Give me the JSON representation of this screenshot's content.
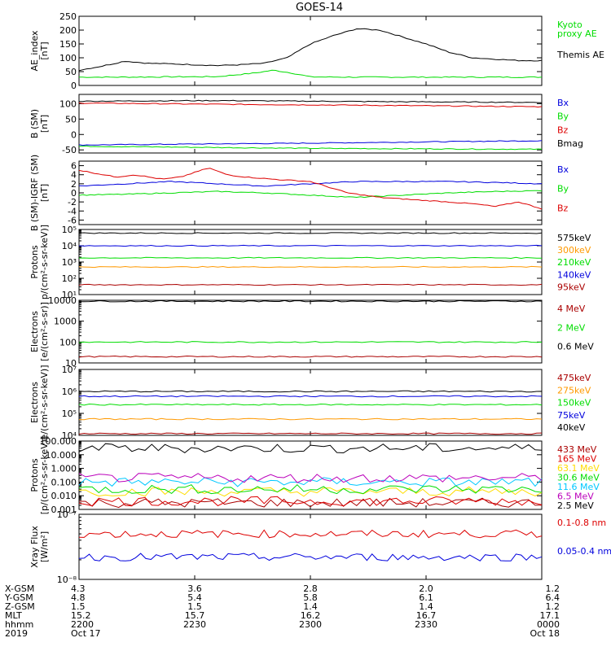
{
  "title": "GOES-14",
  "colors": {
    "black": "#000000",
    "red": "#dd0000",
    "green": "#00dd00",
    "blue": "#0000dd",
    "orange": "#ff9900",
    "yellow": "#ffdd00",
    "cyan": "#00c8ff",
    "purple": "#bb00bb",
    "darkred": "#aa0000",
    "gray": "#888888"
  },
  "chart_data": [
    {
      "type": "line",
      "id": "ae",
      "ylabel": [
        "AE_index",
        "[nT]"
      ],
      "ylim": [
        0,
        250
      ],
      "yscale": "linear",
      "yticks": [
        0,
        50,
        100,
        150,
        200,
        250
      ],
      "series": [
        {
          "name": "Kyoto proxy AE",
          "color": "#00dd00",
          "x": [
            0,
            0.08,
            0.2,
            0.3,
            0.38,
            0.42,
            0.46,
            0.5,
            0.6,
            0.7,
            0.8,
            0.9,
            1
          ],
          "y": [
            30,
            30,
            31,
            32,
            45,
            55,
            45,
            31,
            30,
            30,
            30,
            30,
            30
          ]
        },
        {
          "name": "Themis AE",
          "color": "#000000",
          "x": [
            0,
            0.05,
            0.1,
            0.15,
            0.2,
            0.25,
            0.3,
            0.35,
            0.4,
            0.45,
            0.5,
            0.55,
            0.6,
            0.65,
            0.7,
            0.75,
            0.8,
            0.85,
            0.9,
            0.95,
            1
          ],
          "y": [
            55,
            70,
            88,
            80,
            78,
            75,
            72,
            75,
            80,
            100,
            150,
            180,
            205,
            200,
            175,
            150,
            120,
            100,
            95,
            90,
            90
          ]
        }
      ]
    },
    {
      "type": "line",
      "id": "bsm",
      "ylabel": [
        "B (SM)",
        "[nT]"
      ],
      "ylim": [
        -60,
        130
      ],
      "yscale": "linear",
      "yticks": [
        -50,
        0,
        50,
        100
      ],
      "series": [
        {
          "name": "Bx",
          "color": "#0000dd",
          "x": [
            0,
            0.5,
            1
          ],
          "y": [
            -34,
            -28,
            -20
          ]
        },
        {
          "name": "By",
          "color": "#00dd00",
          "x": [
            0,
            0.5,
            1
          ],
          "y": [
            -38,
            -45,
            -48
          ]
        },
        {
          "name": "Bz",
          "color": "#dd0000",
          "x": [
            0,
            0.3,
            0.6,
            1
          ],
          "y": [
            102,
            98,
            95,
            90
          ]
        },
        {
          "name": "Bmag",
          "color": "#000000",
          "x": [
            0,
            0.3,
            0.6,
            1
          ],
          "y": [
            108,
            110,
            107,
            104
          ]
        }
      ]
    },
    {
      "type": "line",
      "id": "bigrf",
      "ylabel": [
        "B (SM)-IGRF (SM)",
        "[nT]"
      ],
      "ylim": [
        -7,
        7
      ],
      "yscale": "linear",
      "yticks": [
        -6,
        -4,
        -2,
        0,
        2,
        4,
        6
      ],
      "series": [
        {
          "name": "Bx",
          "color": "#0000dd",
          "x": [
            0,
            0.1,
            0.2,
            0.3,
            0.4,
            0.5,
            0.6,
            0.7,
            0.8,
            0.9,
            1
          ],
          "y": [
            1.5,
            2.0,
            2.5,
            2.0,
            1.5,
            2.0,
            2.5,
            2.5,
            2.5,
            2.3,
            2.0
          ]
        },
        {
          "name": "By",
          "color": "#00dd00",
          "x": [
            0,
            0.1,
            0.2,
            0.3,
            0.4,
            0.5,
            0.6,
            0.7,
            0.8,
            0.9,
            1
          ],
          "y": [
            -0.5,
            -0.3,
            0.0,
            0.3,
            0.0,
            -0.5,
            -1.0,
            -0.5,
            0.0,
            0.3,
            0.5
          ]
        },
        {
          "name": "Bz",
          "color": "#dd0000",
          "x": [
            0,
            0.08,
            0.12,
            0.18,
            0.22,
            0.28,
            0.32,
            0.36,
            0.42,
            0.5,
            0.58,
            0.65,
            0.72,
            0.8,
            0.86,
            0.9,
            0.95,
            1
          ],
          "y": [
            5.0,
            3.5,
            4.0,
            3.0,
            3.5,
            5.5,
            4.0,
            3.5,
            3.0,
            2.5,
            0.0,
            -1.0,
            -1.5,
            -2.0,
            -2.5,
            -3.0,
            -2.0,
            -3.5
          ]
        }
      ]
    },
    {
      "type": "line",
      "id": "protons1",
      "ylabel": [
        "Protons",
        "p/(cm²-s-sr-keV)]"
      ],
      "ylim": [
        10,
        100000
      ],
      "yscale": "log",
      "yticklabels": [
        "10¹",
        "10²",
        "10³",
        "10⁴",
        "10⁵"
      ],
      "series": [
        {
          "name": "575keV",
          "color": "#000000",
          "level": 60000
        },
        {
          "name": "300keV",
          "color": "#ff9900",
          "level": 500
        },
        {
          "name": "210keV",
          "color": "#00dd00",
          "level": 1800
        },
        {
          "name": "140keV",
          "color": "#0000dd",
          "level": 10000
        },
        {
          "name": "95keV",
          "color": "#aa0000",
          "level": 40
        }
      ]
    },
    {
      "type": "line",
      "id": "electrons1",
      "ylabel": [
        "Electrons",
        "[e/(cm²-s-sr)]"
      ],
      "ylim": [
        10,
        10000
      ],
      "yscale": "log",
      "yticklabels": [
        "10",
        "100",
        "1000",
        "10000"
      ],
      "series": [
        {
          "name": "4 MeV",
          "color": "#aa0000",
          "level": 20
        },
        {
          "name": "2 MeV",
          "color": "#00dd00",
          "level": 100
        },
        {
          "name": "0.6 MeV",
          "color": "#000000",
          "level": 9000
        }
      ]
    },
    {
      "type": "line",
      "id": "electrons2",
      "ylabel": [
        "Electrons",
        "e/(cm²-s-sr-keV)]"
      ],
      "ylim": [
        10000,
        10000000
      ],
      "yscale": "log",
      "yticklabels": [
        "10⁴",
        "10⁵",
        "10⁶",
        "10⁷"
      ],
      "series": [
        {
          "name": "475keV",
          "color": "#aa0000",
          "level": 12000
        },
        {
          "name": "275keV",
          "color": "#ff9900",
          "level": 55000
        },
        {
          "name": "150keV",
          "color": "#00dd00",
          "level": 250000
        },
        {
          "name": "75keV",
          "color": "#0000dd",
          "level": 600000
        },
        {
          "name": "40keV",
          "color": "#000000",
          "level": 1000000
        }
      ]
    },
    {
      "type": "line",
      "id": "protons2",
      "ylabel": [
        "Protons",
        "[p/(cm²-s-sr-keV)]"
      ],
      "ylim": [
        0.001,
        100
      ],
      "yscale": "log",
      "yticklabels": [
        "0.001",
        "0.010",
        "0.100",
        "1.000",
        "10.000",
        "100.000"
      ],
      "series": [
        {
          "name": "433 MeV",
          "color": "#aa0000",
          "level": 0.003
        },
        {
          "name": "165 MeV",
          "color": "#dd0000",
          "level": 0.004
        },
        {
          "name": "63.1 MeV",
          "color": "#ffdd00",
          "level": 0.02
        },
        {
          "name": "30.6 MeV",
          "color": "#00dd00",
          "level": 0.03
        },
        {
          "name": "11.6 MeV",
          "color": "#00c8ff",
          "level": 0.1
        },
        {
          "name": "6.5 MeV",
          "color": "#bb00bb",
          "level": 0.2
        },
        {
          "name": "2.5 MeV",
          "color": "#000000",
          "level": 30
        }
      ]
    },
    {
      "type": "line",
      "id": "xray",
      "ylabel": [
        "Xray Flux",
        "[W/m²]"
      ],
      "ylim": [
        1e-08,
        1e-07
      ],
      "yscale": "log",
      "yticklabels": [
        "10⁻⁸",
        "10⁻⁷"
      ],
      "series": [
        {
          "name": "0.1-0.8 nm",
          "color": "#dd0000",
          "level": 5e-08
        },
        {
          "name": "0.05-0.4 nm",
          "color": "#0000dd",
          "level": 2.2e-08
        }
      ]
    }
  ],
  "xaxis": {
    "rows": [
      {
        "label": "X-GSM",
        "values": [
          "4.3",
          "3.6",
          "2.8",
          "2.0",
          "1.2"
        ]
      },
      {
        "label": "Y-GSM",
        "values": [
          "4.8",
          "5.4",
          "5.8",
          "6.1",
          "6.4"
        ]
      },
      {
        "label": "Z-GSM",
        "values": [
          "1.5",
          "1.5",
          "1.4",
          "1.4",
          "1.2"
        ]
      },
      {
        "label": "MLT",
        "values": [
          "15.2",
          "15.7",
          "16.2",
          "16.7",
          "17.1"
        ]
      },
      {
        "label": "hhmm",
        "values": [
          "2200",
          "2230",
          "2300",
          "2330",
          "0000"
        ]
      },
      {
        "label": "2019",
        "values": [
          "Oct 17",
          "",
          "",
          "",
          "Oct 18"
        ]
      }
    ]
  }
}
